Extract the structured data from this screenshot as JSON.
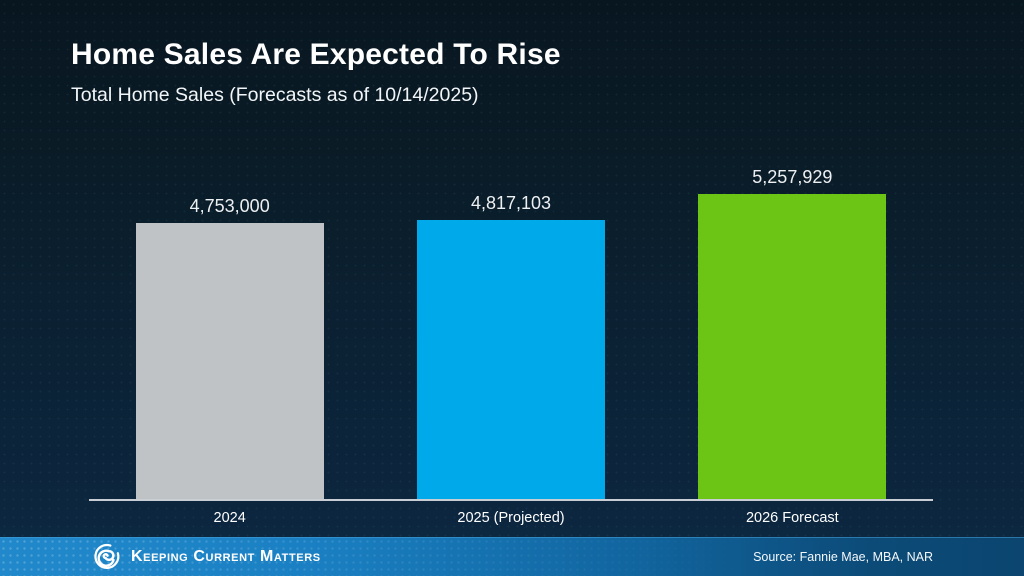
{
  "slide": {
    "title": "Home Sales Are Expected To Rise",
    "subtitle": "Total Home Sales (Forecasts as of 10/14/2025)",
    "source": "Source: Fannie Mae, MBA, NAR",
    "brand": "Keeping Current Matters"
  },
  "chart_data": {
    "type": "bar",
    "title": "Home Sales Are Expected To Rise",
    "subtitle": "Total Home Sales (Forecasts as of 10/14/2025)",
    "categories": [
      "2024",
      "2025 (Projected)",
      "2026 Forecast"
    ],
    "values": [
      4753000,
      4817103,
      5257929
    ],
    "value_labels": [
      "4,753,000",
      "4,817,103",
      "5,257,929"
    ],
    "bar_colors": [
      "#bfc3c5",
      "#00a9e9",
      "#6cc514"
    ],
    "ylabel": "",
    "xlabel": "",
    "ylim": [
      0,
      5600000
    ],
    "baseline": 0,
    "grid": false,
    "legend": false,
    "annotations": [
      "Source: Fannie Mae, MBA, NAR"
    ]
  },
  "colors": {
    "background_top": "#081620",
    "background_bottom": "#0c2843",
    "axis_line": "#c9ced4",
    "footer_gradient_left": "#2189cb",
    "footer_gradient_right": "#0b4570",
    "text": "#ffffff"
  },
  "icons": {
    "brand_logo": "kcm-swirl-icon"
  }
}
